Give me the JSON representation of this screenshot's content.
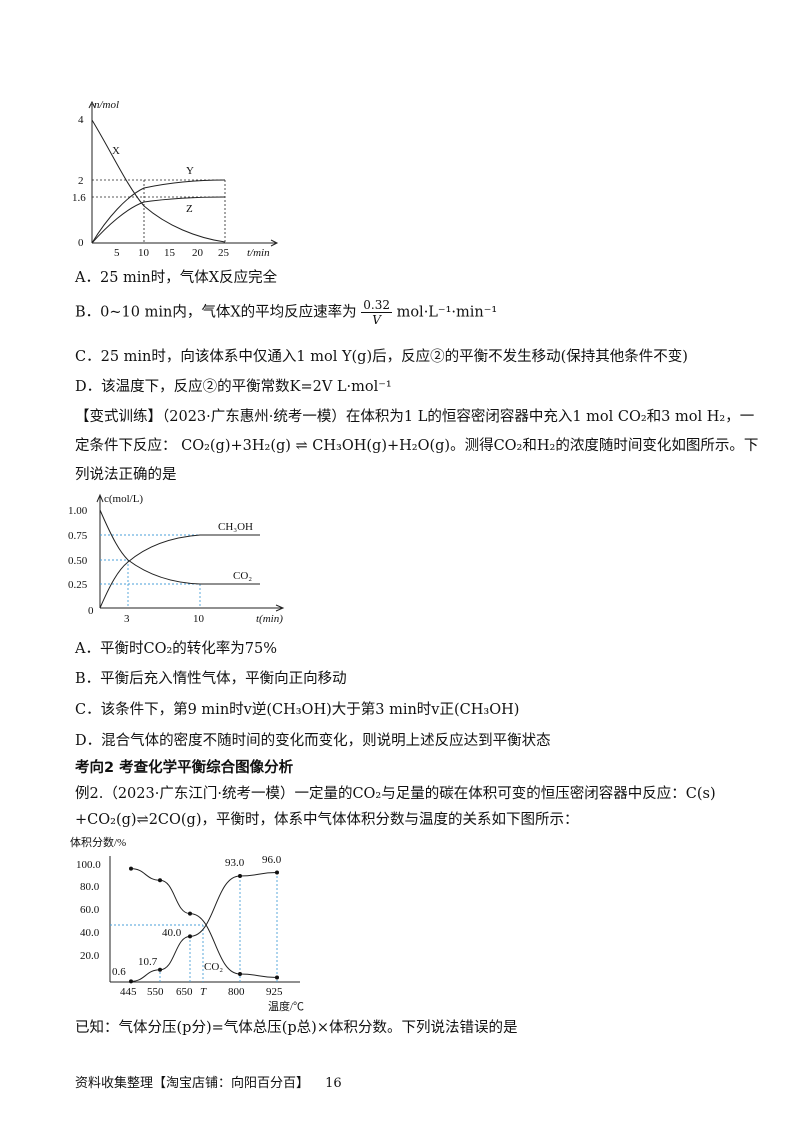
{
  "chart1": {
    "ylabel": "n/mol",
    "xlabel": "t/min",
    "y_ticks": [
      "4",
      "2",
      "1.6",
      "0"
    ],
    "x_ticks": [
      "5",
      "10",
      "15",
      "20",
      "25"
    ],
    "curve_labels": {
      "X": "X",
      "Y": "Y",
      "Z": "Z"
    }
  },
  "question1": {
    "A": "A．25 min时，气体X反应完全",
    "B_prefix": "B．0~10 min内，气体X的平均反应速率为",
    "B_num": "0.32",
    "B_den": "V",
    "B_suffix": "mol·L⁻¹·min⁻¹",
    "C": "C．25 min时，向该体系中仅通入1 mol Y(g)后，反应②的平衡不发生移动(保持其他条件不变)",
    "D": "D．该温度下，反应②的平衡常数K=2V  L·mol⁻¹"
  },
  "variant": {
    "line1": "【变式训练】（2023·广东惠州·统考一模）在体积为1 L的恒容密闭容器中充入1 mol CO₂和3 mol H₂，一",
    "line2": "定条件下反应： CO₂(g)+3H₂(g) ⇌ CH₃OH(g)+H₂O(g)。测得CO₂和H₂的浓度随时间变化如图所示。下",
    "line3": "列说法正确的是"
  },
  "chart2": {
    "ylabel": "c(mol/L)",
    "xlabel": "t(min)",
    "y_ticks": [
      "1.00",
      "0.75",
      "0.50",
      "0.25",
      "0"
    ],
    "x_ticks": [
      "3",
      "10"
    ],
    "series_labels": [
      "CH₃OH",
      "CO₂"
    ]
  },
  "question2": {
    "A": "A．平衡时CO₂的转化率为75%",
    "B": "B．平衡后充入惰性气体，平衡向正向移动",
    "C": "C．该条件下，第9 min时v逆(CH₃OH)大于第3 min时v正(CH₃OH)",
    "D": "D．混合气体的密度不随时间的变化而变化，则说明上述反应达到平衡状态"
  },
  "section": {
    "title": "考向2 考查化学平衡综合图像分析"
  },
  "example": {
    "line1": "例2.（2023·广东江门·统考一模）一定量的CO₂与足量的碳在体积可变的恒压密闭容器中反应：C(s)",
    "line2": "+CO₂(g)⇌2CO(g)，平衡时，体系中气体体积分数与温度的关系如下图所示："
  },
  "chart3": {
    "ylabel": "体积分数/%",
    "xlabel": "温度/℃",
    "y_ticks": [
      "100.0",
      "80.0",
      "60.0",
      "40.0",
      "20.0"
    ],
    "x_ticks": [
      "445",
      "550",
      "650",
      "T",
      "800",
      "925"
    ],
    "data_labels": [
      "0.6",
      "10.7",
      "40.0",
      "93.0",
      "96.0"
    ],
    "series_label": "CO₂",
    "co_points": [
      [
        445,
        0.6
      ],
      [
        550,
        10.7
      ],
      [
        650,
        40.0
      ],
      [
        800,
        93.0
      ],
      [
        925,
        96.0
      ]
    ],
    "co2_points": [
      [
        445,
        99.4
      ],
      [
        550,
        89.3
      ],
      [
        650,
        60.0
      ],
      [
        800,
        7.0
      ],
      [
        925,
        4.0
      ]
    ]
  },
  "known": {
    "text": "已知：气体分压(p分)=气体总压(p总)×体积分数。下列说法错误的是"
  },
  "footer": {
    "text": "资料收集整理【淘宝店铺：向阳百分百】",
    "page": "16"
  }
}
